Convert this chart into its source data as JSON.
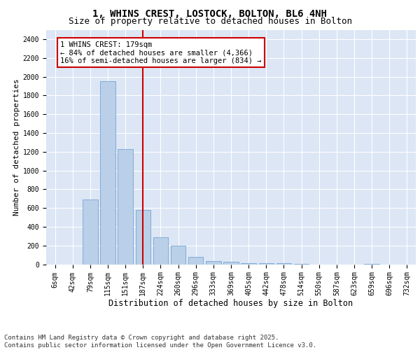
{
  "title1": "1, WHINS CREST, LOSTOCK, BOLTON, BL6 4NH",
  "title2": "Size of property relative to detached houses in Bolton",
  "xlabel": "Distribution of detached houses by size in Bolton",
  "ylabel": "Number of detached properties",
  "bin_labels": [
    "6sqm",
    "42sqm",
    "79sqm",
    "115sqm",
    "151sqm",
    "187sqm",
    "224sqm",
    "260sqm",
    "296sqm",
    "333sqm",
    "369sqm",
    "405sqm",
    "442sqm",
    "478sqm",
    "514sqm",
    "550sqm",
    "587sqm",
    "623sqm",
    "659sqm",
    "696sqm",
    "732sqm"
  ],
  "bar_values": [
    0,
    0,
    690,
    1950,
    1230,
    580,
    290,
    200,
    75,
    35,
    25,
    12,
    8,
    12,
    3,
    0,
    0,
    0,
    5,
    0,
    0
  ],
  "bar_color": "#bad0e8",
  "bar_edgecolor": "#6699cc",
  "vline_x_index": 5,
  "vline_color": "#cc0000",
  "annotation_text": "1 WHINS CREST: 179sqm\n← 84% of detached houses are smaller (4,366)\n16% of semi-detached houses are larger (834) →",
  "annotation_box_color": "#cc0000",
  "ylim": [
    0,
    2500
  ],
  "yticks": [
    0,
    200,
    400,
    600,
    800,
    1000,
    1200,
    1400,
    1600,
    1800,
    2000,
    2200,
    2400
  ],
  "bg_color": "#dce6f5",
  "footer_text": "Contains HM Land Registry data © Crown copyright and database right 2025.\nContains public sector information licensed under the Open Government Licence v3.0.",
  "title1_fontsize": 10,
  "title2_fontsize": 9,
  "xlabel_fontsize": 8.5,
  "ylabel_fontsize": 8,
  "tick_fontsize": 7,
  "annotation_fontsize": 7.5,
  "footer_fontsize": 6.5
}
